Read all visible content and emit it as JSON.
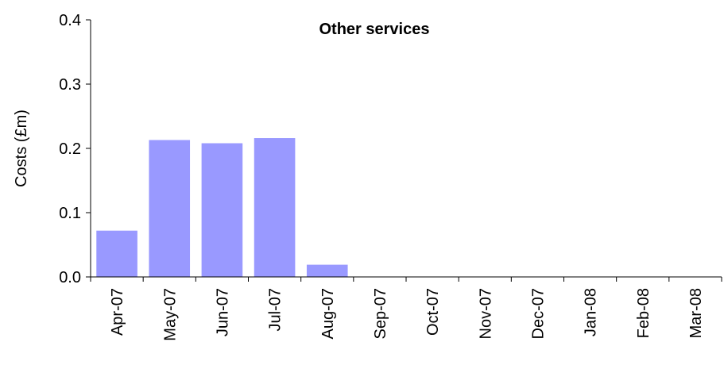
{
  "chart_data": {
    "type": "bar",
    "title": "Other services",
    "xlabel": "",
    "ylabel": "Costs (£m)",
    "ylim": [
      0,
      0.4
    ],
    "yticks": [
      "0.0",
      "0.1",
      "0.2",
      "0.3",
      "0.4"
    ],
    "categories": [
      "Apr-07",
      "May-07",
      "Jun-07",
      "Jul-07",
      "Aug-07",
      "Sep-07",
      "Oct-07",
      "Nov-07",
      "Dec-07",
      "Jan-08",
      "Feb-08",
      "Mar-08"
    ],
    "values": [
      0.072,
      0.213,
      0.208,
      0.216,
      0.019,
      0,
      0,
      0,
      0,
      0,
      0,
      0
    ],
    "bar_color": "#9999ff",
    "grid": false,
    "legend": "none"
  }
}
